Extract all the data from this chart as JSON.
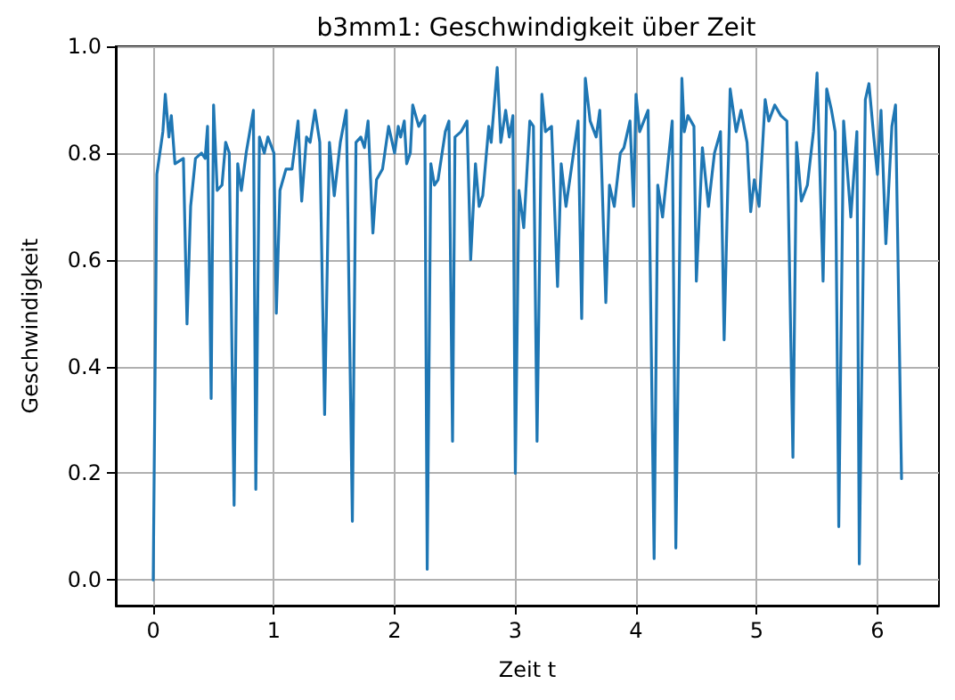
{
  "chart_data": {
    "type": "line",
    "title": "b3mm1: Geschwindigkeit über Zeit",
    "xlabel": "Zeit t",
    "ylabel": "Geschwindigkeit",
    "xlim": [
      -0.31,
      6.51
    ],
    "ylim": [
      -0.048,
      1.0
    ],
    "xticks": [
      0,
      1,
      2,
      3,
      4,
      5,
      6
    ],
    "yticks": [
      {
        "value": 0,
        "label": "0.0"
      },
      {
        "value": 0.2,
        "label": "0.2"
      },
      {
        "value": 0.4,
        "label": "0.4"
      },
      {
        "value": 0.6,
        "label": "0.6"
      },
      {
        "value": 0.8,
        "label": "0.8"
      },
      {
        "value": 1,
        "label": "1.0"
      }
    ],
    "grid": true,
    "marker": "none",
    "line_style": "solid",
    "x": [
      0,
      0.03,
      0.08,
      0.1,
      0.13,
      0.15,
      0.18,
      0.25,
      0.28,
      0.31,
      0.35,
      0.4,
      0.43,
      0.45,
      0.48,
      0.5,
      0.53,
      0.57,
      0.6,
      0.63,
      0.67,
      0.7,
      0.73,
      0.77,
      0.83,
      0.85,
      0.88,
      0.92,
      0.95,
      1.0,
      1.02,
      1.05,
      1.1,
      1.15,
      1.2,
      1.23,
      1.27,
      1.3,
      1.34,
      1.38,
      1.42,
      1.46,
      1.5,
      1.55,
      1.6,
      1.65,
      1.68,
      1.72,
      1.75,
      1.78,
      1.82,
      1.85,
      1.9,
      1.95,
      2.0,
      2.03,
      2.05,
      2.08,
      2.1,
      2.13,
      2.15,
      2.2,
      2.25,
      2.27,
      2.3,
      2.33,
      2.36,
      2.42,
      2.45,
      2.48,
      2.5,
      2.55,
      2.6,
      2.63,
      2.67,
      2.7,
      2.73,
      2.78,
      2.8,
      2.85,
      2.88,
      2.92,
      2.95,
      2.98,
      3.0,
      3.03,
      3.07,
      3.12,
      3.15,
      3.18,
      3.22,
      3.25,
      3.3,
      3.35,
      3.38,
      3.42,
      3.47,
      3.52,
      3.55,
      3.58,
      3.62,
      3.67,
      3.7,
      3.75,
      3.78,
      3.82,
      3.87,
      3.9,
      3.95,
      3.98,
      4.0,
      4.03,
      4.1,
      4.15,
      4.18,
      4.22,
      4.3,
      4.33,
      4.38,
      4.4,
      4.43,
      4.48,
      4.5,
      4.55,
      4.6,
      4.65,
      4.7,
      4.73,
      4.78,
      4.83,
      4.87,
      4.92,
      4.95,
      4.98,
      5.02,
      5.07,
      5.1,
      5.15,
      5.2,
      5.25,
      5.3,
      5.33,
      5.37,
      5.42,
      5.47,
      5.5,
      5.55,
      5.58,
      5.62,
      5.65,
      5.68,
      5.72,
      5.78,
      5.83,
      5.85,
      5.9,
      5.93,
      5.97,
      6.0,
      6.03,
      6.07,
      6.12,
      6.15,
      6.2
    ],
    "series": [
      {
        "color": "#1f77b4",
        "values": [
          0,
          0.76,
          0.84,
          0.91,
          0.83,
          0.87,
          0.78,
          0.79,
          0.48,
          0.7,
          0.79,
          0.8,
          0.79,
          0.85,
          0.34,
          0.89,
          0.73,
          0.74,
          0.82,
          0.8,
          0.14,
          0.78,
          0.73,
          0.8,
          0.88,
          0.17,
          0.83,
          0.8,
          0.83,
          0.8,
          0.5,
          0.73,
          0.77,
          0.77,
          0.86,
          0.71,
          0.83,
          0.82,
          0.88,
          0.82,
          0.31,
          0.82,
          0.72,
          0.82,
          0.88,
          0.11,
          0.82,
          0.83,
          0.81,
          0.86,
          0.65,
          0.75,
          0.77,
          0.85,
          0.8,
          0.85,
          0.83,
          0.86,
          0.78,
          0.8,
          0.89,
          0.85,
          0.87,
          0.02,
          0.78,
          0.74,
          0.75,
          0.84,
          0.86,
          0.26,
          0.83,
          0.84,
          0.86,
          0.6,
          0.78,
          0.7,
          0.72,
          0.85,
          0.82,
          0.96,
          0.82,
          0.88,
          0.83,
          0.87,
          0.2,
          0.73,
          0.66,
          0.86,
          0.85,
          0.26,
          0.91,
          0.84,
          0.85,
          0.55,
          0.78,
          0.7,
          0.78,
          0.86,
          0.49,
          0.94,
          0.86,
          0.83,
          0.88,
          0.52,
          0.74,
          0.7,
          0.8,
          0.81,
          0.86,
          0.7,
          0.91,
          0.84,
          0.88,
          0.04,
          0.74,
          0.68,
          0.86,
          0.06,
          0.94,
          0.84,
          0.87,
          0.85,
          0.56,
          0.81,
          0.7,
          0.8,
          0.84,
          0.45,
          0.92,
          0.84,
          0.88,
          0.82,
          0.69,
          0.75,
          0.7,
          0.9,
          0.86,
          0.89,
          0.87,
          0.86,
          0.23,
          0.82,
          0.71,
          0.74,
          0.84,
          0.95,
          0.56,
          0.92,
          0.88,
          0.84,
          0.1,
          0.86,
          0.68,
          0.84,
          0.03,
          0.9,
          0.93,
          0.83,
          0.76,
          0.88,
          0.63,
          0.85,
          0.89,
          0.19
        ]
      }
    ]
  }
}
